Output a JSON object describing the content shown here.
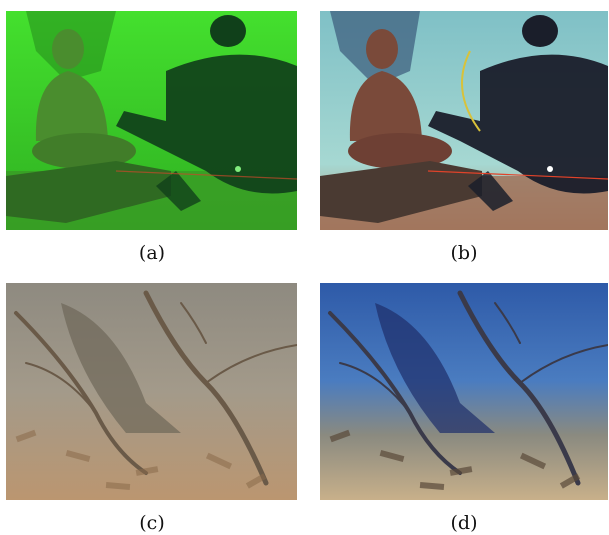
{
  "figure": {
    "panels": [
      {
        "id": "a",
        "caption": "(a)",
        "scene": "buddha-statue-diver",
        "tone": "raw-green-cast",
        "colors": {
          "water": "#3fe02a",
          "deep": "#1f7a18",
          "statue": "#4a8d2e",
          "base": "#2f6a22",
          "floor": "#3a9a25",
          "diver": "#10401a"
        }
      },
      {
        "id": "b",
        "caption": "(b)",
        "scene": "buddha-statue-diver",
        "tone": "enhanced",
        "colors": {
          "water": "#8ec8c8",
          "deep": "#3a5a7a",
          "statue": "#7a4a3a",
          "base": "#4a3a32",
          "floor": "#a0725a",
          "diver": "#1a1e2a"
        }
      },
      {
        "id": "c",
        "caption": "(c)",
        "scene": "tree-branches-leaf-litter",
        "tone": "raw-hazy",
        "colors": {
          "water": "#9a9488",
          "deep": "#6e6658",
          "floor": "#b9966e",
          "branch": "#6a5a48"
        }
      },
      {
        "id": "d",
        "caption": "(d)",
        "scene": "tree-branches-leaf-litter",
        "tone": "enhanced",
        "colors": {
          "water": "#3a64b0",
          "deep": "#1e2e6a",
          "floor": "#c8b08a",
          "branch": "#3a3a4a"
        }
      }
    ]
  }
}
